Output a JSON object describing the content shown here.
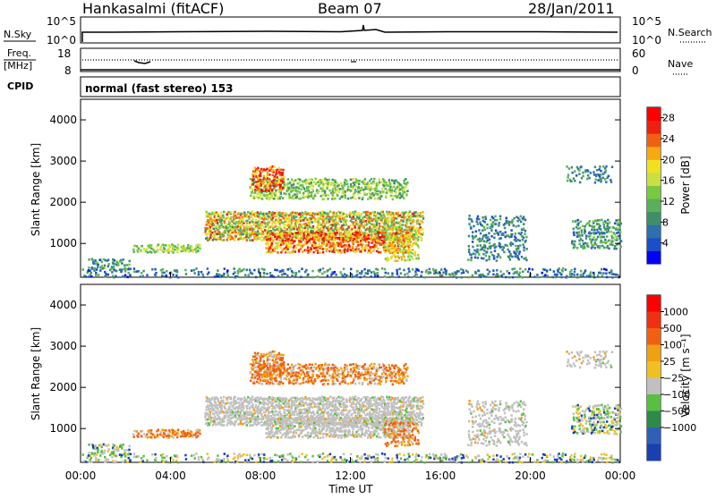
{
  "header": {
    "station": "Hankasalmi (fitACF)",
    "beam": "Beam 07",
    "date": "28/Jan/2011"
  },
  "panels": {
    "nsky": {
      "label": "N.Sky",
      "right_label": "N.Search",
      "left_ticks": [
        "10^5",
        "10^0"
      ],
      "right_ticks": [
        "10^5",
        "10^0"
      ]
    },
    "freq": {
      "label_line1": "Freq.",
      "label_line2": "[MHz]",
      "left_ticks": [
        "18",
        "8"
      ],
      "right_ticks": [
        "60",
        "0"
      ],
      "right_label": "Nave"
    },
    "cpid": {
      "label": "CPID",
      "text": "normal (fast stereo) 153"
    }
  },
  "chart_data": [
    {
      "type": "heatmap",
      "title": "",
      "xlabel": "",
      "ylabel": "Slant Range [km]",
      "y_ticks": [
        "1000",
        "2000",
        "3000",
        "4000"
      ],
      "ylim": [
        180,
        4500
      ],
      "xlim": [
        "00:00",
        "24:00"
      ],
      "colorbar": {
        "label": "Power [dB]",
        "ticks": [
          "4",
          "8",
          "12",
          "16",
          "20",
          "24",
          "28"
        ],
        "range": [
          0,
          30
        ],
        "colors": [
          "#0000ff",
          "#1a4fc8",
          "#2f6fb0",
          "#3e8e6a",
          "#58b058",
          "#78c840",
          "#c8e040",
          "#f0e020",
          "#f8a810",
          "#f06010",
          "#f02010",
          "#ff0000"
        ]
      }
    },
    {
      "type": "heatmap",
      "title": "",
      "xlabel": "Time UT",
      "ylabel": "Slant Range [km]",
      "x_ticks": [
        "00:00",
        "04:00",
        "08:00",
        "12:00",
        "16:00",
        "20:00",
        "00:00"
      ],
      "y_ticks": [
        "1000",
        "2000",
        "3000",
        "4000"
      ],
      "ylim": [
        180,
        4500
      ],
      "xlim": [
        "00:00",
        "24:00"
      ],
      "colorbar": {
        "label": "Velocity [m s⁻¹]",
        "ticks": [
          "1000",
          "500",
          "100",
          "25",
          "−25",
          "−100",
          "−500",
          "−1000"
        ],
        "colors": [
          "#1a3fb0",
          "#2e60b8",
          "#2e8a4a",
          "#58c040",
          "#c0c0c0",
          "#f0c020",
          "#f0a010",
          "#f06010",
          "#f03010",
          "#ff0000"
        ]
      }
    }
  ]
}
